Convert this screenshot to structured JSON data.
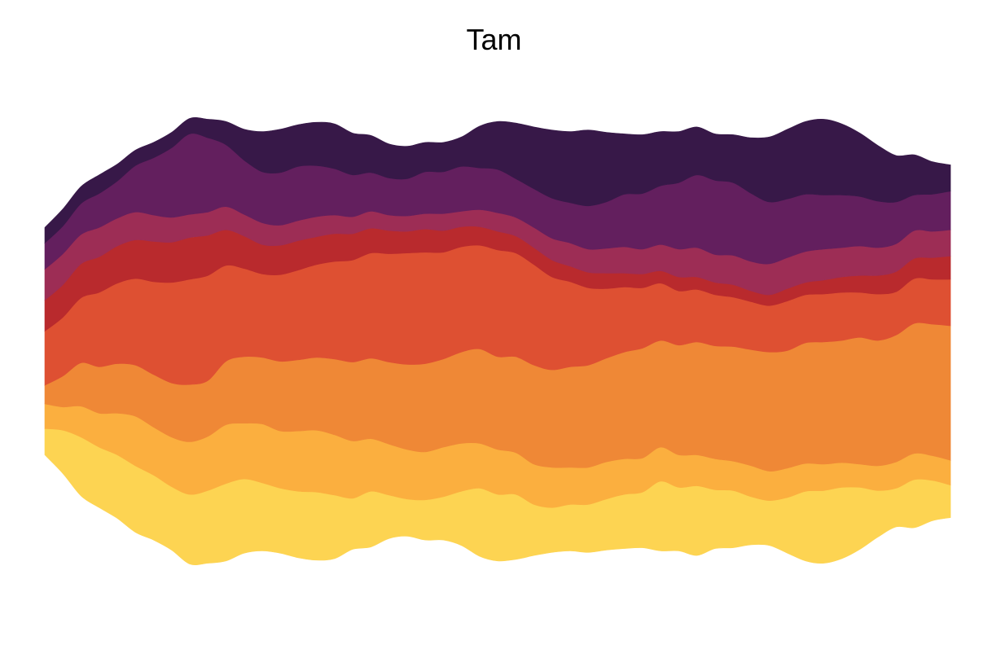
{
  "chart_data": {
    "type": "area",
    "style": "streamgraph",
    "title": "Tam",
    "xlabel": "",
    "ylabel": "",
    "axes_visible": false,
    "grid": false,
    "legend": "none",
    "x": [
      0,
      0.5,
      1,
      1.5,
      2,
      2.5,
      3,
      3.5,
      4,
      4.5,
      5,
      5.5,
      6,
      6.5,
      7,
      7.5,
      8,
      8.5,
      9,
      9.5,
      10,
      10.5,
      11,
      11.5,
      12,
      12.5,
      13,
      13.5,
      14,
      14.5,
      15,
      15.5,
      16,
      16.5,
      17,
      17.5,
      18,
      18.5,
      19,
      19.5,
      20,
      20.5,
      21,
      21.5,
      22,
      22.5,
      23,
      23.5,
      24,
      24.5,
      25
    ],
    "series": [
      {
        "color": "#fdd452",
        "values": [
          17,
          28,
          38,
          39,
          41,
          43,
          42,
          41,
          45,
          47,
          50,
          48,
          44,
          42,
          43,
          44,
          41,
          33,
          36,
          28,
          24,
          26,
          28,
          35,
          44,
          43,
          42,
          33,
          29,
          30,
          31,
          33,
          35,
          36,
          45,
          41,
          45,
          38,
          37,
          31,
          29,
          36,
          45,
          47,
          46,
          40,
          30,
          25,
          31,
          26,
          21
        ]
      },
      {
        "color": "#fbaf3f",
        "values": [
          16,
          15,
          20,
          22,
          27,
          32,
          31,
          32,
          34,
          35,
          38,
          36,
          38,
          37,
          39,
          40,
          39,
          37,
          34,
          33,
          32,
          31,
          32,
          31,
          29,
          29,
          27,
          26,
          26,
          24,
          24,
          24,
          23,
          22,
          22,
          21,
          20,
          20,
          19,
          20,
          19,
          19,
          18,
          17,
          16,
          15,
          16,
          17,
          17,
          16,
          16
        ]
      },
      {
        "color": "#ef8836",
        "values": [
          12,
          20,
          28,
          30,
          32,
          33,
          34,
          35,
          37,
          36,
          41,
          43,
          43,
          45,
          46,
          47,
          49,
          51,
          52,
          53,
          55,
          57,
          57,
          59,
          61,
          60,
          62,
          64,
          63,
          65,
          66,
          67,
          69,
          71,
          69,
          71,
          73,
          73,
          74,
          75,
          77,
          76,
          78,
          79,
          79,
          82,
          81,
          82,
          84,
          85,
          87
        ]
      },
      {
        "color": "#de5032",
        "values": [
          35,
          38,
          42,
          48,
          52,
          56,
          60,
          65,
          68,
          68,
          62,
          57,
          54,
          56,
          58,
          60,
          63,
          66,
          68,
          70,
          72,
          72,
          69,
          68,
          67,
          69,
          67,
          65,
          60,
          55,
          50,
          45,
          42,
          39,
          37,
          35,
          34,
          33,
          32,
          31,
          30,
          32,
          31,
          31,
          31,
          29,
          30,
          28,
          29,
          29,
          30
        ]
      },
      {
        "color": "#b92a2d",
        "values": [
          20,
          21,
          22,
          23,
          24,
          25,
          26,
          26,
          27,
          26,
          23,
          21,
          19,
          19,
          19,
          18,
          18,
          17,
          16,
          15,
          14,
          15,
          14,
          13,
          12,
          12,
          11,
          11,
          11,
          10,
          10,
          10,
          9,
          9,
          8,
          9,
          8,
          8,
          8,
          7,
          7,
          8,
          8,
          9,
          10,
          11,
          12,
          13,
          13,
          14,
          15
        ]
      },
      {
        "color": "#9d2d55",
        "values": [
          20,
          20,
          19,
          19,
          18,
          18,
          17,
          16,
          15,
          15,
          15,
          14,
          14,
          13,
          13,
          13,
          12,
          11,
          11,
          10,
          10,
          10,
          11,
          10,
          11,
          12,
          12,
          13,
          14,
          15,
          15,
          16,
          17,
          16,
          17,
          18,
          19,
          18,
          19,
          19,
          20,
          20,
          20,
          20,
          19,
          19,
          18,
          18,
          18,
          17,
          17
        ]
      },
      {
        "color": "#631f5e",
        "values": [
          17,
          18,
          20,
          22,
          24,
          30,
          37,
          45,
          52,
          48,
          40,
          35,
          33,
          34,
          35,
          33,
          30,
          27,
          25,
          24,
          24,
          27,
          27,
          29,
          27,
          28,
          25,
          25,
          26,
          26,
          28,
          30,
          34,
          36,
          38,
          43,
          47,
          48,
          47,
          44,
          40,
          38,
          37,
          35,
          34,
          32,
          30,
          27,
          23,
          24,
          25
        ]
      },
      {
        "color": "#371848",
        "values": [
          10,
          11,
          11,
          12,
          11,
          10,
          10,
          10,
          10,
          12,
          15,
          20,
          26,
          28,
          27,
          28,
          29,
          27,
          24,
          22,
          21,
          19,
          19,
          19,
          27,
          31,
          36,
          40,
          44,
          46,
          49,
          45,
          39,
          38,
          35,
          33,
          31,
          30,
          31,
          36,
          42,
          45,
          47,
          49,
          46,
          41,
          36,
          30,
          26,
          21,
          17
        ]
      }
    ]
  }
}
